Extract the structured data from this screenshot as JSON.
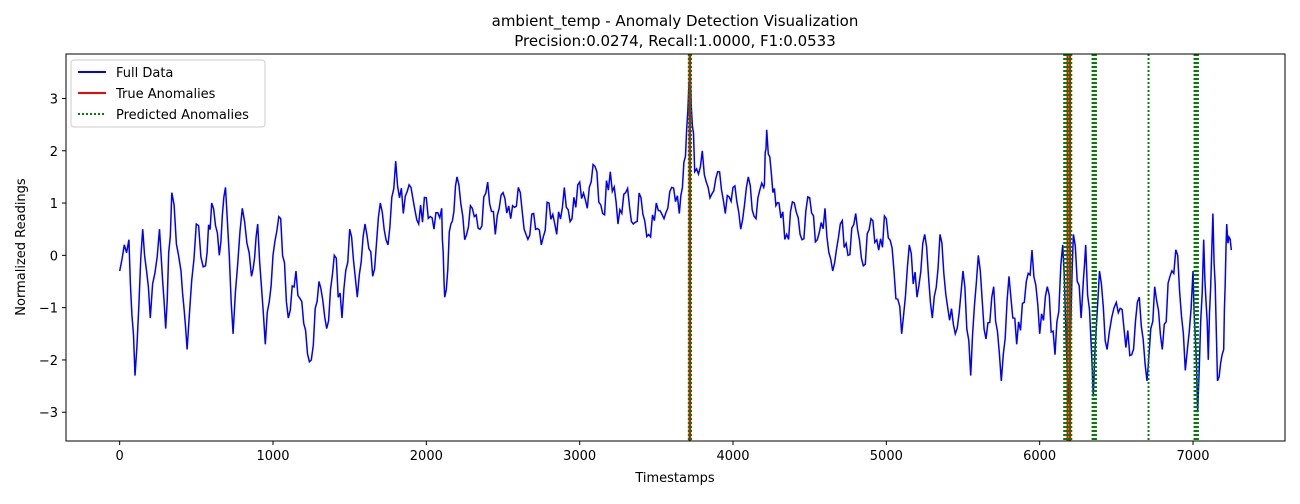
{
  "chart_data": {
    "type": "line",
    "title": "ambient_temp - Anomaly Detection Visualization",
    "subtitle": "Precision:0.0274, Recall:1.0000, F1:0.0533",
    "xlabel": "Timestamps",
    "ylabel": "Normalized Readings",
    "xlim": [
      -350,
      7600
    ],
    "ylim": [
      -3.55,
      3.85
    ],
    "xticks": [
      0,
      1000,
      2000,
      3000,
      4000,
      5000,
      6000,
      7000
    ],
    "yticks": [
      -3,
      -2,
      -1,
      0,
      1,
      2,
      3
    ],
    "grid": false,
    "legend_position": "top-left",
    "series": [
      {
        "name": "Full Data",
        "color": "#0000ff",
        "style": "solid",
        "points": [
          [
            0,
            -0.3
          ],
          [
            60,
            0.3
          ],
          [
            100,
            -2.3
          ],
          [
            150,
            0.5
          ],
          [
            200,
            -1.2
          ],
          [
            260,
            0.5
          ],
          [
            300,
            -1.4
          ],
          [
            340,
            1.2
          ],
          [
            400,
            -0.3
          ],
          [
            440,
            -1.8
          ],
          [
            500,
            0.6
          ],
          [
            560,
            -0.2
          ],
          [
            600,
            1.0
          ],
          [
            650,
            0.0
          ],
          [
            690,
            1.3
          ],
          [
            740,
            -1.5
          ],
          [
            800,
            0.9
          ],
          [
            860,
            -0.4
          ],
          [
            900,
            0.6
          ],
          [
            950,
            -1.7
          ],
          [
            1000,
            0.0
          ],
          [
            1050,
            0.7
          ],
          [
            1100,
            -1.2
          ],
          [
            1150,
            -0.3
          ],
          [
            1200,
            -1.3
          ],
          [
            1250,
            -2.0
          ],
          [
            1300,
            -0.5
          ],
          [
            1350,
            -1.4
          ],
          [
            1400,
            0.0
          ],
          [
            1450,
            -1.2
          ],
          [
            1500,
            0.5
          ],
          [
            1550,
            -0.8
          ],
          [
            1600,
            0.6
          ],
          [
            1650,
            -0.4
          ],
          [
            1700,
            1.0
          ],
          [
            1750,
            0.2
          ],
          [
            1800,
            1.8
          ],
          [
            1850,
            0.8
          ],
          [
            1900,
            1.3
          ],
          [
            1950,
            0.6
          ],
          [
            2000,
            1.1
          ],
          [
            2050,
            0.5
          ],
          [
            2100,
            0.9
          ],
          [
            2120,
            -0.8
          ],
          [
            2160,
            0.6
          ],
          [
            2200,
            1.5
          ],
          [
            2250,
            0.3
          ],
          [
            2300,
            0.9
          ],
          [
            2350,
            0.5
          ],
          [
            2400,
            1.4
          ],
          [
            2450,
            0.4
          ],
          [
            2500,
            1.2
          ],
          [
            2550,
            0.7
          ],
          [
            2600,
            1.3
          ],
          [
            2650,
            0.4
          ],
          [
            2700,
            0.8
          ],
          [
            2750,
            0.2
          ],
          [
            2800,
            1.0
          ],
          [
            2850,
            0.4
          ],
          [
            2900,
            1.3
          ],
          [
            2950,
            0.7
          ],
          [
            3000,
            1.4
          ],
          [
            3050,
            0.9
          ],
          [
            3100,
            1.7
          ],
          [
            3150,
            0.8
          ],
          [
            3200,
            1.6
          ],
          [
            3250,
            0.6
          ],
          [
            3300,
            1.2
          ],
          [
            3350,
            0.6
          ],
          [
            3400,
            1.1
          ],
          [
            3450,
            0.4
          ],
          [
            3500,
            1.0
          ],
          [
            3550,
            0.7
          ],
          [
            3600,
            1.3
          ],
          [
            3650,
            0.8
          ],
          [
            3690,
            1.9
          ],
          [
            3720,
            3.6
          ],
          [
            3750,
            1.6
          ],
          [
            3800,
            2.0
          ],
          [
            3850,
            1.1
          ],
          [
            3900,
            1.6
          ],
          [
            3950,
            0.8
          ],
          [
            4000,
            1.3
          ],
          [
            4050,
            0.5
          ],
          [
            4100,
            1.5
          ],
          [
            4150,
            0.7
          ],
          [
            4200,
            1.3
          ],
          [
            4220,
            2.4
          ],
          [
            4260,
            1.2
          ],
          [
            4300,
            1.0
          ],
          [
            4350,
            0.4
          ],
          [
            4400,
            1.0
          ],
          [
            4450,
            0.3
          ],
          [
            4500,
            1.1
          ],
          [
            4550,
            0.3
          ],
          [
            4600,
            0.9
          ],
          [
            4650,
            -0.3
          ],
          [
            4700,
            0.6
          ],
          [
            4750,
            0.0
          ],
          [
            4800,
            0.8
          ],
          [
            4850,
            -0.2
          ],
          [
            4900,
            0.7
          ],
          [
            4950,
            0.1
          ],
          [
            5000,
            0.7
          ],
          [
            5050,
            -0.3
          ],
          [
            5100,
            -1.5
          ],
          [
            5150,
            0.2
          ],
          [
            5200,
            -0.8
          ],
          [
            5250,
            0.4
          ],
          [
            5300,
            -1.2
          ],
          [
            5350,
            0.4
          ],
          [
            5400,
            -1.0
          ],
          [
            5450,
            -1.5
          ],
          [
            5500,
            -0.3
          ],
          [
            5550,
            -2.3
          ],
          [
            5600,
            0.0
          ],
          [
            5650,
            -1.6
          ],
          [
            5700,
            -0.6
          ],
          [
            5750,
            -2.4
          ],
          [
            5800,
            -0.4
          ],
          [
            5850,
            -1.7
          ],
          [
            5900,
            -0.9
          ],
          [
            5950,
            0.1
          ],
          [
            6000,
            -1.5
          ],
          [
            6050,
            -0.6
          ],
          [
            6100,
            -1.9
          ],
          [
            6150,
            0.2
          ],
          [
            6190,
            -2.8
          ],
          [
            6220,
            0.4
          ],
          [
            6270,
            -1.2
          ],
          [
            6300,
            0.2
          ],
          [
            6350,
            -2.7
          ],
          [
            6390,
            -0.3
          ],
          [
            6440,
            -1.8
          ],
          [
            6500,
            -0.9
          ],
          [
            6550,
            -1.4
          ],
          [
            6600,
            -1.9
          ],
          [
            6650,
            -0.8
          ],
          [
            6700,
            -2.4
          ],
          [
            6750,
            -0.6
          ],
          [
            6800,
            -1.8
          ],
          [
            6850,
            -0.4
          ],
          [
            6900,
            0.0
          ],
          [
            6950,
            -2.2
          ],
          [
            7000,
            -0.3
          ],
          [
            7030,
            -3.0
          ],
          [
            7070,
            0.3
          ],
          [
            7100,
            -2.0
          ],
          [
            7130,
            0.8
          ],
          [
            7160,
            -2.4
          ],
          [
            7200,
            -1.8
          ],
          [
            7220,
            0.6
          ],
          [
            7250,
            0.1
          ]
        ]
      },
      {
        "name": "True Anomalies",
        "color": "#ff0000",
        "style": "solid",
        "x": [
          3715,
          3722,
          6180,
          6192,
          6200
        ]
      },
      {
        "name": "Predicted Anomalies",
        "color": "#008000",
        "style": "dotted",
        "x": [
          3712,
          3726,
          6160,
          6172,
          6186,
          6196,
          6206,
          6345,
          6352,
          6360,
          6367,
          6710,
          7010,
          7018,
          7025,
          7032
        ]
      }
    ]
  }
}
